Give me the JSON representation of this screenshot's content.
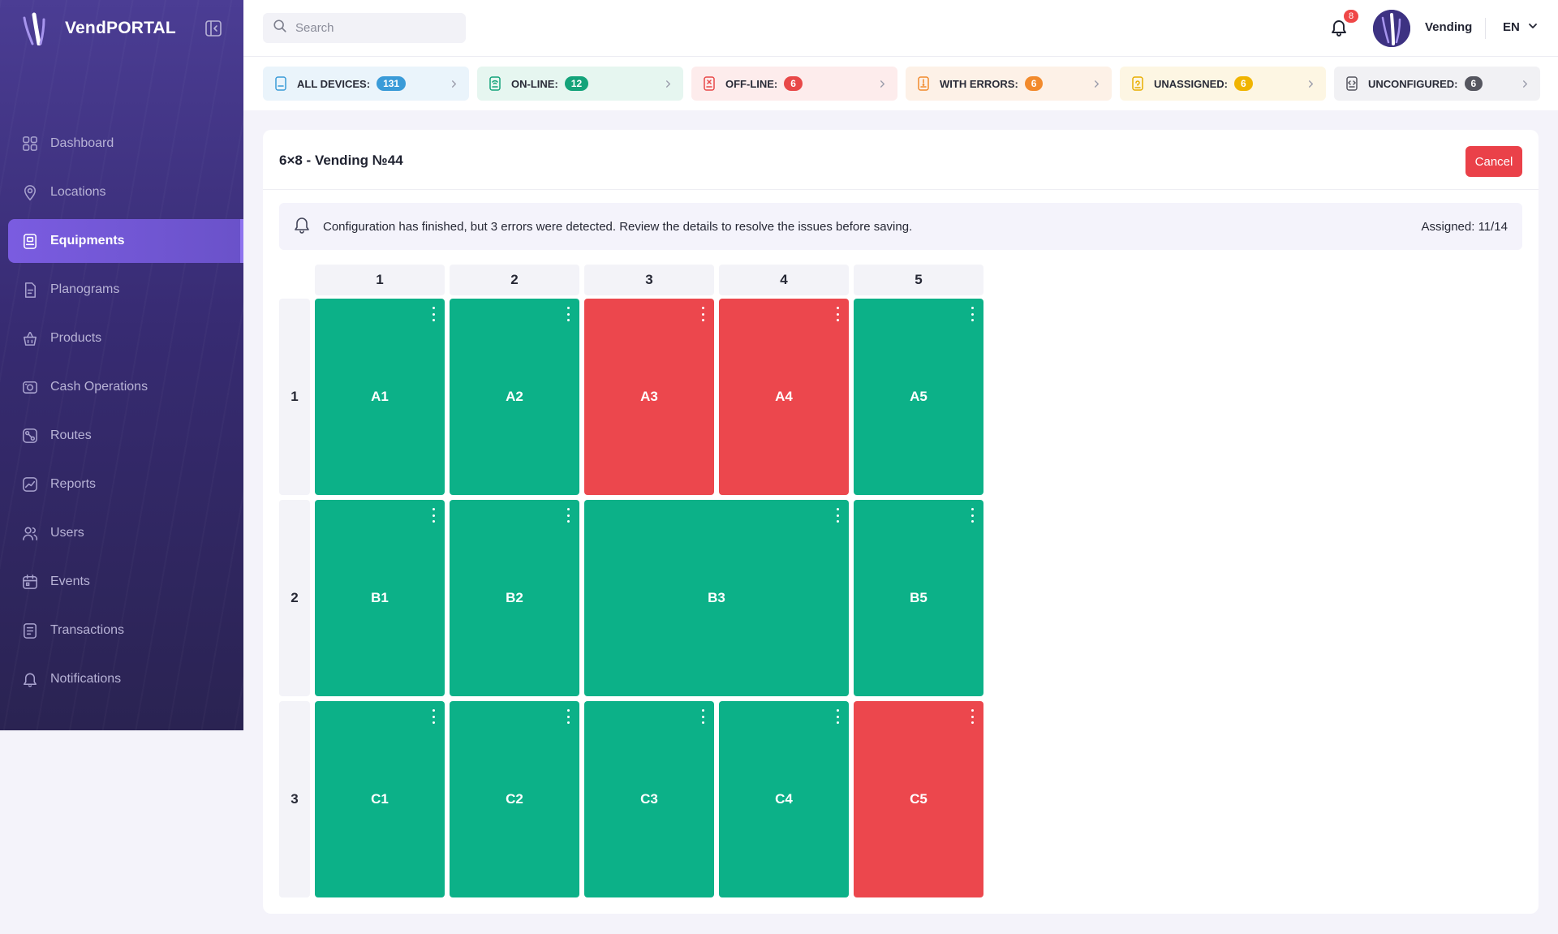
{
  "app": {
    "logo_text": "VendPORTAL"
  },
  "sidebar": {
    "items": [
      {
        "key": "dashboard",
        "label": "Dashboard",
        "icon": "grid-icon",
        "active": false
      },
      {
        "key": "locations",
        "label": "Locations",
        "icon": "location-pin-icon",
        "active": false
      },
      {
        "key": "equipments",
        "label": "Equipments",
        "icon": "vending-machine-icon",
        "active": true
      },
      {
        "key": "planograms",
        "label": "Planograms",
        "icon": "document-icon",
        "active": false
      },
      {
        "key": "products",
        "label": "Products",
        "icon": "basket-icon",
        "active": false
      },
      {
        "key": "cash-operations",
        "label": "Cash Operations",
        "icon": "cash-icon",
        "active": false
      },
      {
        "key": "routes",
        "label": "Routes",
        "icon": "route-icon",
        "active": false
      },
      {
        "key": "reports",
        "label": "Reports",
        "icon": "chart-icon",
        "active": false
      },
      {
        "key": "users",
        "label": "Users",
        "icon": "users-icon",
        "active": false
      },
      {
        "key": "events",
        "label": "Events",
        "icon": "calendar-icon",
        "active": false
      },
      {
        "key": "transactions",
        "label": "Transactions",
        "icon": "receipt-icon",
        "active": false
      },
      {
        "key": "notifications",
        "label": "Notifications",
        "icon": "bell-icon",
        "active": false
      }
    ]
  },
  "header": {
    "search_placeholder": "Search",
    "notifications_count": "8",
    "user_name": "Vending",
    "language": "EN"
  },
  "status_tabs": [
    {
      "key": "all-devices",
      "label": "ALL DEVICES:",
      "count": "131",
      "bg": "#eaf4fb",
      "badge": "#3a9bd8",
      "icon_color": "#3a9bd8"
    },
    {
      "key": "on-line",
      "label": "ON-LINE:",
      "count": "12",
      "bg": "#e6f6f0",
      "badge": "#14a37a",
      "icon_color": "#14a37a"
    },
    {
      "key": "off-line",
      "label": "OFF-LINE:",
      "count": "6",
      "bg": "#fdecec",
      "badge": "#e84848",
      "icon_color": "#e84848"
    },
    {
      "key": "with-errors",
      "label": "WITH ERRORS:",
      "count": "6",
      "bg": "#fdf1e7",
      "badge": "#f28a2c",
      "icon_color": "#f28a2c"
    },
    {
      "key": "unassigned",
      "label": "UNASSIGNED:",
      "count": "6",
      "bg": "#fdf6e3",
      "badge": "#f0b400",
      "icon_color": "#e8ad00"
    },
    {
      "key": "unconfigured",
      "label": "UNCONFIGURED:",
      "count": "6",
      "bg": "#f1f1f4",
      "badge": "#55565f",
      "icon_color": "#55565f"
    }
  ],
  "card": {
    "title": "6×8 - Vending №44",
    "cancel_label": "Cancel",
    "alert_text": "Configuration has finished, but 3 errors were detected. Review the details to resolve the issues before saving.",
    "assigned_text": "Assigned: 11/14"
  },
  "grid": {
    "columns": [
      "1",
      "2",
      "3",
      "4",
      "5"
    ],
    "rows": [
      "1",
      "2",
      "3"
    ],
    "cells": [
      {
        "label": "A1",
        "row": 1,
        "col": 1,
        "span": 1,
        "status": "ok"
      },
      {
        "label": "A2",
        "row": 1,
        "col": 2,
        "span": 1,
        "status": "ok"
      },
      {
        "label": "A3",
        "row": 1,
        "col": 3,
        "span": 1,
        "status": "error"
      },
      {
        "label": "A4",
        "row": 1,
        "col": 4,
        "span": 1,
        "status": "error"
      },
      {
        "label": "A5",
        "row": 1,
        "col": 5,
        "span": 1,
        "status": "ok"
      },
      {
        "label": "B1",
        "row": 2,
        "col": 1,
        "span": 1,
        "status": "ok"
      },
      {
        "label": "B2",
        "row": 2,
        "col": 2,
        "span": 1,
        "status": "ok"
      },
      {
        "label": "B3",
        "row": 2,
        "col": 3,
        "span": 2,
        "status": "ok"
      },
      {
        "label": "B5",
        "row": 2,
        "col": 5,
        "span": 1,
        "status": "ok"
      },
      {
        "label": "C1",
        "row": 3,
        "col": 1,
        "span": 1,
        "status": "ok"
      },
      {
        "label": "C2",
        "row": 3,
        "col": 2,
        "span": 1,
        "status": "ok"
      },
      {
        "label": "C3",
        "row": 3,
        "col": 3,
        "span": 1,
        "status": "ok"
      },
      {
        "label": "C4",
        "row": 3,
        "col": 4,
        "span": 1,
        "status": "ok"
      },
      {
        "label": "C5",
        "row": 3,
        "col": 5,
        "span": 1,
        "status": "error"
      }
    ]
  },
  "colors": {
    "ok": "#0cb188",
    "error": "#ec474d",
    "accent": "#7a5ce0"
  }
}
